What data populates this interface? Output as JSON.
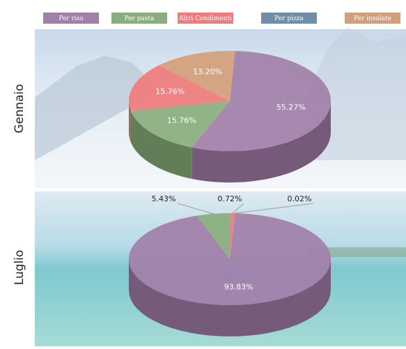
{
  "chart_data": [
    {
      "type": "pie",
      "title": "Gennaio",
      "categories": [
        "Per riso",
        "Per pasta",
        "Altri Condimenti",
        "Per pizza",
        "Per insalate"
      ],
      "colors": [
        "#a27fa8",
        "#8aae7c",
        "#f07b7b",
        "#6f8fab",
        "#d29f78"
      ],
      "values": [
        55.27,
        15.76,
        15.76,
        null,
        13.2
      ],
      "value_labels": [
        "55.27%",
        "15.76%",
        "15.76%",
        null,
        "13.20%"
      ]
    },
    {
      "type": "pie",
      "title": "Luglio",
      "values": [
        93.83,
        5.43,
        0.72,
        null,
        0.02
      ],
      "value_labels": [
        "93.83%",
        "5.43%",
        "0.72%",
        null,
        "0.02%"
      ]
    }
  ]
}
